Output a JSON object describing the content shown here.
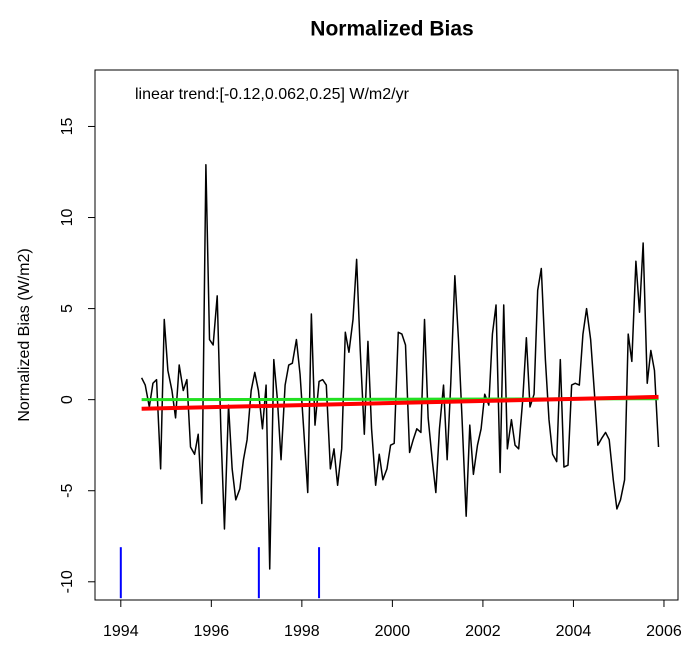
{
  "chart_data": {
    "type": "line",
    "title": "Normalized Bias",
    "ylabel": "Normalized Bias (W/m2)",
    "annotation": "linear trend:[-0.12,0.062,0.25] W/m2/yr",
    "xlim": [
      1993.43,
      2006.31
    ],
    "ylim": [
      -11,
      18.1
    ],
    "xticks": [
      1994,
      1996,
      1998,
      2000,
      2002,
      2004,
      2006
    ],
    "yticks": [
      -10,
      -5,
      0,
      5,
      10,
      15
    ],
    "grid": false,
    "x": [
      1994.46,
      1994.54,
      1994.63,
      1994.71,
      1994.79,
      1994.88,
      1994.96,
      1995.04,
      1995.13,
      1995.21,
      1995.29,
      1995.38,
      1995.46,
      1995.54,
      1995.63,
      1995.71,
      1995.79,
      1995.88,
      1995.96,
      1996.04,
      1996.13,
      1996.21,
      1996.29,
      1996.38,
      1996.46,
      1996.54,
      1996.63,
      1996.71,
      1996.79,
      1996.88,
      1996.96,
      1997.04,
      1997.13,
      1997.21,
      1997.29,
      1997.38,
      1997.46,
      1997.54,
      1997.63,
      1997.71,
      1997.79,
      1997.88,
      1997.96,
      1998.04,
      1998.13,
      1998.21,
      1998.29,
      1998.38,
      1998.46,
      1998.54,
      1998.63,
      1998.71,
      1998.79,
      1998.88,
      1998.96,
      1999.04,
      1999.13,
      1999.21,
      1999.29,
      1999.38,
      1999.46,
      1999.54,
      1999.63,
      1999.71,
      1999.79,
      1999.88,
      1999.96,
      2000.04,
      2000.13,
      2000.21,
      2000.29,
      2000.38,
      2000.46,
      2000.54,
      2000.63,
      2000.71,
      2000.79,
      2000.88,
      2000.96,
      2001.04,
      2001.13,
      2001.21,
      2001.29,
      2001.38,
      2001.46,
      2001.54,
      2001.63,
      2001.71,
      2001.79,
      2001.88,
      2001.96,
      2002.04,
      2002.13,
      2002.21,
      2002.29,
      2002.38,
      2002.46,
      2002.54,
      2002.63,
      2002.71,
      2002.79,
      2002.88,
      2002.96,
      2003.04,
      2003.13,
      2003.21,
      2003.29,
      2003.38,
      2003.46,
      2003.54,
      2003.63,
      2003.71,
      2003.79,
      2003.88,
      2003.96,
      2004.04,
      2004.13,
      2004.21,
      2004.29,
      2004.38,
      2004.46,
      2004.54,
      2004.63,
      2004.71,
      2004.79,
      2004.88,
      2004.96,
      2005.04,
      2005.13,
      2005.21,
      2005.29,
      2005.38,
      2005.46,
      2005.54,
      2005.63,
      2005.71,
      2005.79,
      2005.88
    ],
    "series": [
      {
        "color": "#000000",
        "values": [
          1.2,
          0.8,
          -0.4,
          0.9,
          1.1,
          -3.8,
          4.4,
          1.6,
          0.5,
          -1.0,
          1.9,
          0.5,
          1.1,
          -2.6,
          -3.0,
          -1.9,
          -5.7,
          12.9,
          3.3,
          3.0,
          5.7,
          -1.6,
          -7.1,
          -0.3,
          -3.8,
          -5.5,
          -4.9,
          -3.3,
          -2.2,
          0.5,
          1.5,
          0.5,
          -1.6,
          0.8,
          -9.3,
          2.2,
          0,
          -3.3,
          0.8,
          1.9,
          2.0,
          3.3,
          1.4,
          -1.6,
          -5.1,
          4.7,
          -1.4,
          1.0,
          1.1,
          0.8,
          -3.8,
          -2.7,
          -4.7,
          -2.7,
          3.7,
          2.6,
          4.4,
          7.7,
          2.7,
          -1.9,
          3.2,
          -1.6,
          -4.7,
          -3.0,
          -4.4,
          -3.8,
          -2.5,
          -2.4,
          3.7,
          3.6,
          3.0,
          -2.9,
          -2.2,
          -1.6,
          -1.8,
          4.4,
          -1.0,
          -3.3,
          -5.1,
          -1.6,
          0.8,
          -3.3,
          0.9,
          6.8,
          3.3,
          -1.1,
          -6.4,
          -1.4,
          -4.1,
          -2.5,
          -1.6,
          0.3,
          -0.3,
          3.6,
          5.2,
          -4.0,
          5.2,
          -2.7,
          -1.1,
          -2.5,
          -2.7,
          0,
          3.4,
          -0.4,
          0.3,
          6.0,
          7.2,
          2.2,
          -1.1,
          -3.0,
          -3.4,
          2.2,
          -3.7,
          -3.6,
          0.8,
          0.9,
          0.8,
          3.6,
          5.0,
          3.3,
          0.5,
          -2.5,
          -2.1,
          -1.8,
          -2.2,
          -4.4,
          -6.0,
          -5.5,
          -4.4,
          3.6,
          2.1,
          7.6,
          4.8,
          8.6,
          0.9,
          2.7,
          1.6,
          -2.6
        ]
      }
    ],
    "trend_lines": [
      {
        "color": "#22e022",
        "width": 3,
        "x": [
          1994.46,
          2005.88
        ],
        "values": [
          0.0,
          0.05
        ]
      },
      {
        "color": "#ff0000",
        "width": 4,
        "x": [
          1994.46,
          2005.88
        ],
        "values": [
          -0.5,
          0.15
        ]
      }
    ],
    "events": {
      "color": "#0000ff",
      "x": [
        1994.0,
        1997.05,
        1998.38
      ],
      "y_from": -10.9,
      "y_to": -8.1
    }
  }
}
